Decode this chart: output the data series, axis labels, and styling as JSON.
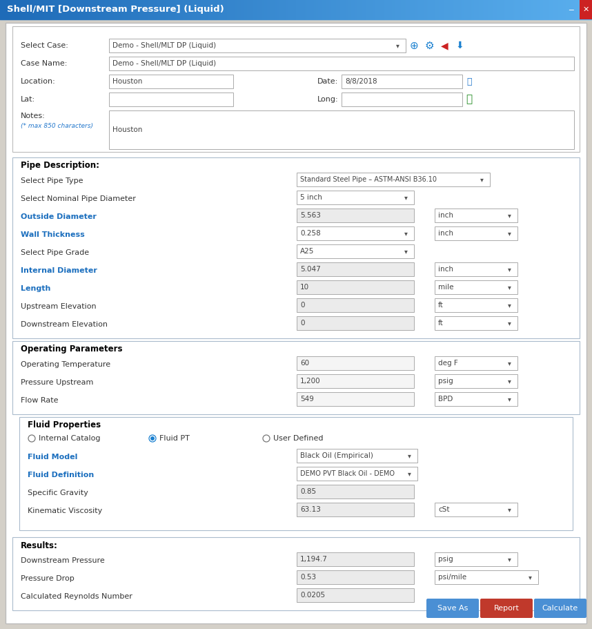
{
  "title_bar": "Shell/MIT [Downstream Pressure] (Liquid)",
  "title_bar_color": "#3A8FD8",
  "title_bar_grad_left": "#1E6BB8",
  "title_bar_grad_right": "#5AAFEE",
  "bg_color": "#FFFFFF",
  "outer_bg": "#D4D0C8",
  "main_bg": "#FFFFFF",
  "section_border_color": "#B0B8C8",
  "label_color": "#333333",
  "blue_label_color": "#1C6FBE",
  "input_bg": "#E8E8E8",
  "input_border": "#AAAAAA",
  "dropdown_bg": "#FFFFFF",
  "section_title_color": "#000000",
  "select_case_label": "Select Case:",
  "select_case_value": "Demo - Shell/MLT DP (Liquid)",
  "case_name_label": "Case Name:",
  "case_name_value": "Demo - Shell/MLT DP (Liquid)",
  "location_label": "Location:",
  "location_value": "Houston",
  "date_label": "Date:",
  "date_value": "8/8/2018",
  "lat_label": "Lat:",
  "long_label": "Long:",
  "notes_label": "Notes:",
  "notes_sub": "(* max 850 characters)",
  "notes_value": "Houston",
  "pipe_section_title": "Pipe Description:",
  "pipe_type_label": "Select Pipe Type",
  "pipe_type_value": "Standard Steel Pipe – ASTM-ANSI B36.10",
  "pipe_diam_label": "Select Nominal Pipe Diameter",
  "pipe_diam_value": "5 inch",
  "outside_diam_label": "Outside Diameter",
  "outside_diam_value": "5.563",
  "outside_diam_unit": "inch",
  "wall_thick_label": "Wall Thickness",
  "wall_thick_value": "0.258",
  "wall_thick_unit": "inch",
  "pipe_grade_label": "Select Pipe Grade",
  "pipe_grade_value": "A25",
  "internal_diam_label": "Internal Diameter",
  "internal_diam_value": "5.047",
  "internal_diam_unit": "inch",
  "length_label": "Length",
  "length_value": "10",
  "length_unit": "mile",
  "upstream_elev_label": "Upstream Elevation",
  "upstream_elev_value": "0",
  "upstream_elev_unit": "ft",
  "downstream_elev_label": "Downstream Elevation",
  "downstream_elev_value": "0",
  "downstream_elev_unit": "ft",
  "op_section_title": "Operating Parameters",
  "op_temp_label": "Operating Temperature",
  "op_temp_value": "60",
  "op_temp_unit": "deg F",
  "pressure_up_label": "Pressure Upstream",
  "pressure_up_value": "1,200",
  "pressure_up_unit": "psig",
  "flow_rate_label": "Flow Rate",
  "flow_rate_value": "549",
  "flow_rate_unit": "BPD",
  "fluid_section_title": "Fluid Properties",
  "radio_internal": "Internal Catalog",
  "radio_fluidpt": "Fluid PT",
  "radio_userdefined": "User Defined",
  "fluid_model_label": "Fluid Model",
  "fluid_model_value": "Black Oil (Empirical)",
  "fluid_def_label": "Fluid Definition",
  "fluid_def_value": "DEMO PVT Black Oil - DEMO",
  "sp_gravity_label": "Specific Gravity",
  "sp_gravity_value": "0.85",
  "kin_visc_label": "Kinematic Viscosity",
  "kin_visc_value": "63.13",
  "kin_visc_unit": "cSt",
  "results_section_title": "Results:",
  "ds_pressure_label": "Downstream Pressure",
  "ds_pressure_value": "1,194.7",
  "ds_pressure_unit": "psig",
  "pressure_drop_label": "Pressure Drop",
  "pressure_drop_value": "0.53",
  "pressure_drop_unit": "psi/mile",
  "reynolds_label": "Calculated Reynolds Number",
  "reynolds_value": "0.0205",
  "btn_save_color": "#4A8FD4",
  "btn_report_color": "#C0392B",
  "btn_calc_color": "#4A8FD4",
  "btn_save_text": "Save As",
  "btn_report_text": "Report",
  "btn_calc_text": "Calculate"
}
